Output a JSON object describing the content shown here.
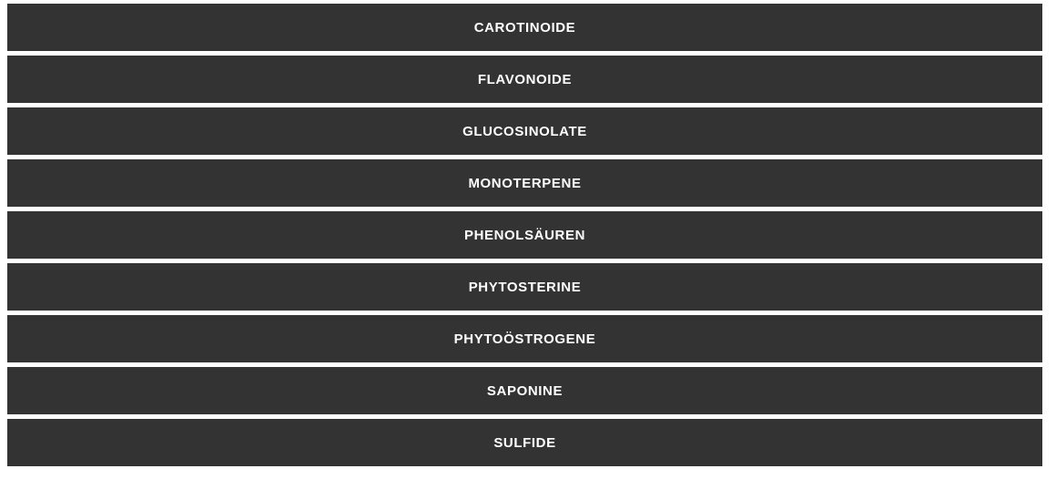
{
  "accordion": {
    "items": [
      {
        "label": "CAROTINOIDE"
      },
      {
        "label": "FLAVONOIDE"
      },
      {
        "label": "GLUCOSINOLATE"
      },
      {
        "label": "MONOTERPENE"
      },
      {
        "label": "PHENOLSÄUREN"
      },
      {
        "label": "PHYTOSTERINE"
      },
      {
        "label": "PHYTOÖSTROGENE"
      },
      {
        "label": "SAPONINE"
      },
      {
        "label": "SULFIDE"
      }
    ]
  },
  "colors": {
    "bar_background": "#333333",
    "bar_text": "#ffffff",
    "page_background": "#ffffff"
  }
}
